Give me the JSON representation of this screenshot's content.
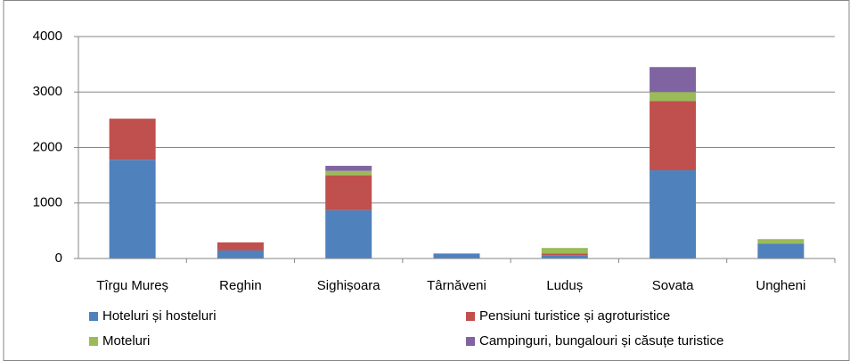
{
  "chart_data": {
    "type": "stacked_bar",
    "categories": [
      "Tîrgu Mureș",
      "Reghin",
      "Sighișoara",
      "Târnăveni",
      "Luduș",
      "Sovata",
      "Ungheni"
    ],
    "series": [
      {
        "name": "Hoteluri și hosteluri",
        "color": "#4f81bd",
        "values": [
          1780,
          145,
          870,
          90,
          60,
          1590,
          270
        ]
      },
      {
        "name": "Pensiuni turistice și agroturistice",
        "color": "#c0504d",
        "values": [
          740,
          145,
          630,
          0,
          30,
          1250,
          0
        ]
      },
      {
        "name": "Moteluri",
        "color": "#9bbb59",
        "values": [
          0,
          0,
          80,
          0,
          100,
          160,
          80
        ]
      },
      {
        "name": "Campinguri, bungalouri și căsuțe turistice",
        "color": "#8064a2",
        "values": [
          0,
          0,
          90,
          0,
          0,
          450,
          0
        ]
      }
    ],
    "ylim": [
      0,
      4000
    ],
    "yticks": [
      0,
      1000,
      2000,
      3000,
      4000
    ],
    "grid": true
  }
}
